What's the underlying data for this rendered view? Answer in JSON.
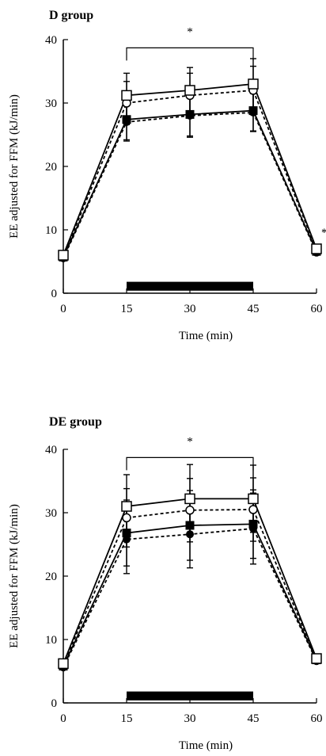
{
  "chart_data": [
    {
      "type": "line",
      "title": "D group",
      "xlabel": "Time (min)",
      "ylabel": "EE adjusted for FFM (kJ/min)",
      "x": [
        0,
        15,
        30,
        45,
        60
      ],
      "xticks": [
        0,
        15,
        30,
        45,
        60
      ],
      "yticks": [
        0,
        10,
        20,
        30,
        40
      ],
      "xlim": [
        0,
        60
      ],
      "ylim": [
        0,
        40
      ],
      "grid": false,
      "series": [
        {
          "marker": "open-square",
          "line": "solid",
          "values": [
            6.0,
            31.2,
            32.0,
            33.0,
            7.0
          ],
          "error": [
            null,
            3.5,
            3.6,
            4.0,
            null
          ]
        },
        {
          "marker": "open-circle",
          "line": "dashed",
          "values": [
            5.8,
            30.0,
            31.2,
            32.0,
            6.8
          ],
          "error": [
            null,
            3.4,
            3.5,
            3.8,
            null
          ]
        },
        {
          "marker": "filled-square",
          "line": "solid",
          "values": [
            5.7,
            27.4,
            28.2,
            28.8,
            6.6
          ],
          "error": [
            null,
            3.2,
            3.6,
            3.2,
            null
          ]
        },
        {
          "marker": "filled-circle",
          "line": "dashed",
          "values": [
            5.5,
            27.0,
            28.0,
            28.5,
            6.4
          ],
          "error": [
            null,
            3.0,
            3.2,
            3.0,
            null
          ]
        }
      ],
      "exercise_bar": {
        "x_start": 15,
        "x_end": 45
      },
      "significance_bracket": {
        "x_start": 15,
        "x_end": 45,
        "y": 38.7,
        "label": "*"
      },
      "annotations": [
        {
          "text": "*",
          "x": 60,
          "y": 9
        }
      ]
    },
    {
      "type": "line",
      "title": "DE group",
      "xlabel": "Time (min)",
      "ylabel": "EE adjusted for FFM (kJ/min)",
      "x": [
        0,
        15,
        30,
        45,
        60
      ],
      "xticks": [
        0,
        15,
        30,
        45,
        60
      ],
      "yticks": [
        0,
        10,
        20,
        30,
        40
      ],
      "xlim": [
        0,
        60
      ],
      "ylim": [
        0,
        40
      ],
      "grid": false,
      "series": [
        {
          "marker": "open-square",
          "line": "solid",
          "values": [
            6.2,
            31.0,
            32.2,
            32.2,
            7.0
          ],
          "error": [
            null,
            5.0,
            5.4,
            5.3,
            null
          ]
        },
        {
          "marker": "open-circle",
          "line": "dashed",
          "values": [
            6.0,
            29.2,
            30.4,
            30.5,
            6.9
          ],
          "error": [
            null,
            4.6,
            5.0,
            5.0,
            null
          ]
        },
        {
          "marker": "filled-square",
          "line": "solid",
          "values": [
            5.8,
            26.8,
            28.0,
            28.2,
            6.8
          ],
          "error": [
            null,
            5.2,
            5.5,
            5.4,
            null
          ]
        },
        {
          "marker": "filled-circle",
          "line": "dashed",
          "values": [
            5.6,
            25.8,
            26.6,
            27.5,
            6.6
          ],
          "error": [
            null,
            5.4,
            5.3,
            5.6,
            null
          ]
        }
      ],
      "exercise_bar": {
        "x_start": 15,
        "x_end": 45
      },
      "significance_bracket": {
        "x_start": 15,
        "x_end": 45,
        "y": 38.7,
        "label": "*"
      },
      "annotations": []
    }
  ]
}
